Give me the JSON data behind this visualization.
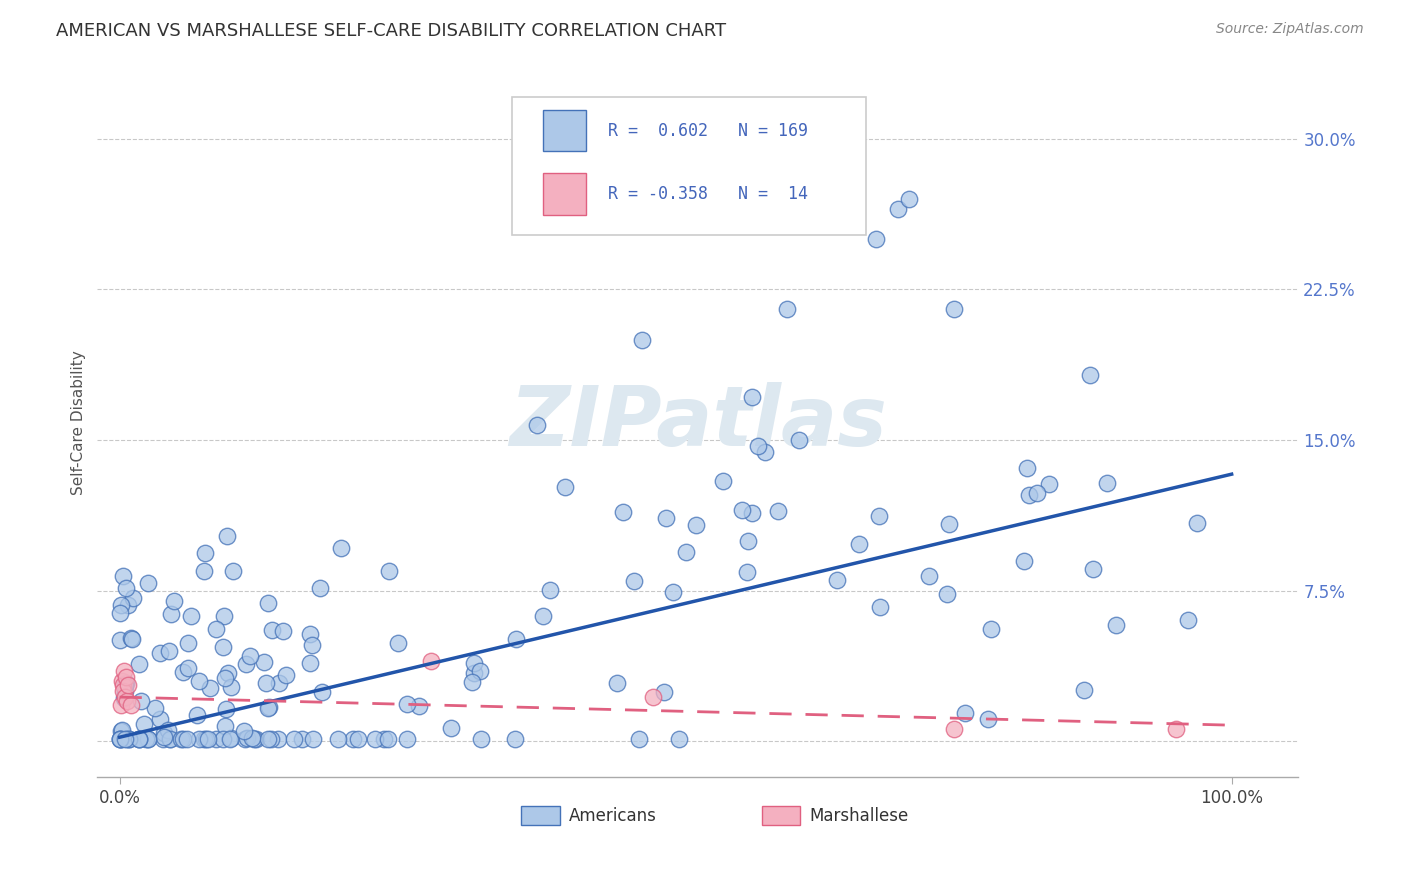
{
  "title": "AMERICAN VS MARSHALLESE SELF-CARE DISABILITY CORRELATION CHART",
  "source": "Source: ZipAtlas.com",
  "ylabel": "Self-Care Disability",
  "ytick_values": [
    0.0,
    0.075,
    0.15,
    0.225,
    0.3
  ],
  "ytick_labels": [
    "",
    "7.5%",
    "15.0%",
    "22.5%",
    "30.0%"
  ],
  "xtick_values": [
    0.0,
    1.0
  ],
  "xtick_labels": [
    "0.0%",
    "100.0%"
  ],
  "legend_r_american": "0.602",
  "legend_n_american": "169",
  "legend_r_marshallese": "-0.358",
  "legend_n_marshallese": "14",
  "color_american_fill": "#adc8e8",
  "color_american_edge": "#4472b8",
  "color_marshallese_fill": "#f4b0c0",
  "color_marshallese_edge": "#e06080",
  "color_american_line": "#2255aa",
  "color_marshallese_line": "#e06080",
  "background_color": "#ffffff",
  "grid_color": "#bbbbbb",
  "title_color": "#333333",
  "tick_color": "#5577cc",
  "watermark_color": "#dde8f0",
  "xlim": [
    -0.02,
    1.06
  ],
  "ylim": [
    -0.018,
    0.335
  ],
  "american_trend_start_y": 0.002,
  "american_trend_end_y": 0.133,
  "marshallese_trend_start_y": 0.022,
  "marshallese_trend_end_y": 0.008
}
